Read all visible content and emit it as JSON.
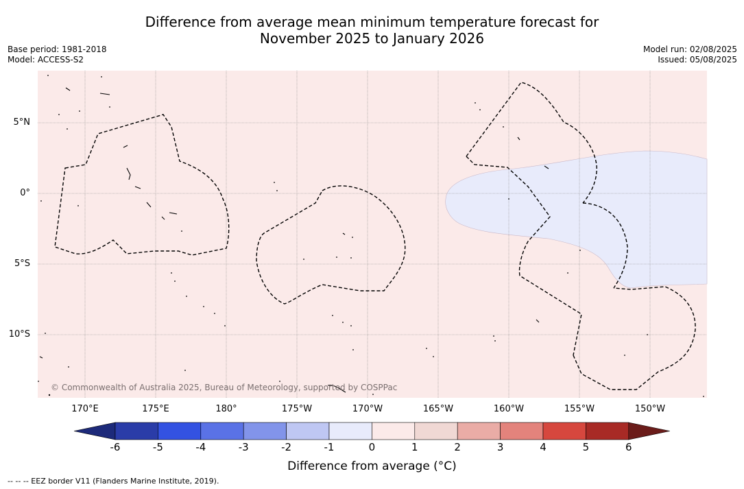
{
  "header": {
    "title_line1": "Difference from average mean minimum temperature forecast for",
    "title_line2": "November 2025 to January 2026",
    "base_period": "Base period: 1981-2018",
    "model": "Model: ACCESS-S2",
    "model_run": "Model run: 02/08/2025",
    "issued": "Issued: 05/08/2025"
  },
  "map": {
    "background_color": "#fbeae9",
    "anomaly_region_color": "#e8ebfb",
    "latitude_labels": [
      "5°N",
      "0°",
      "5°S",
      "10°S"
    ],
    "longitude_labels": [
      "170°E",
      "175°E",
      "180°",
      "175°W",
      "170°W",
      "165°W",
      "160°W",
      "155°W",
      "150°W"
    ],
    "copyright": "© Commonwealth of Australia 2025, Bureau of Meteorology, supported by COSPPac"
  },
  "colorbar": {
    "ticks": [
      "-6",
      "-5",
      "-4",
      "-3",
      "-2",
      "-1",
      "0",
      "1",
      "2",
      "3",
      "4",
      "5",
      "6"
    ],
    "colors": [
      "#1d2a7a",
      "#2a3ca8",
      "#3352e2",
      "#5a72e6",
      "#8294ea",
      "#bfc7f3",
      "#e8ebfb",
      "#fbeae9",
      "#f0d8d4",
      "#eaaca6",
      "#e3837c",
      "#d6473e",
      "#a82a25",
      "#6b1c1a"
    ],
    "label": "Difference from average (°C)"
  },
  "footer": {
    "legend_text": "-- -- -- EEZ border V11 (Flanders Marine Institute, 2019)."
  }
}
